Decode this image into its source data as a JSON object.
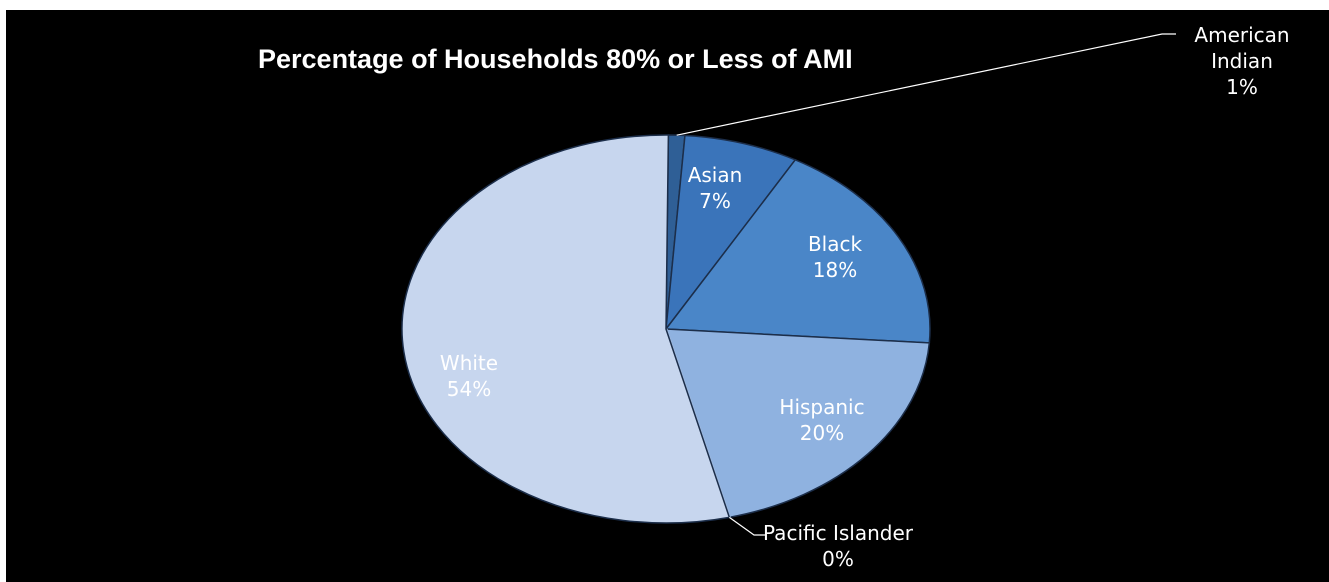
{
  "chart_data": {
    "type": "pie",
    "title": "Percentage of Households 80% or Less of AMI",
    "slices": [
      {
        "label": "American Indian",
        "label_lines": [
          "American",
          "Indian"
        ],
        "value": 1,
        "value_label": "1%",
        "color": "#2f5f96"
      },
      {
        "label": "Asian",
        "label_lines": [
          "Asian"
        ],
        "value": 7,
        "value_label": "7%",
        "color": "#3a74ba"
      },
      {
        "label": "Black",
        "label_lines": [
          "Black"
        ],
        "value": 18,
        "value_label": "18%",
        "color": "#4a86c8"
      },
      {
        "label": "Hispanic",
        "label_lines": [
          "Hispanic"
        ],
        "value": 20,
        "value_label": "20%",
        "color": "#8fb2e0"
      },
      {
        "label": "Pacific Islander",
        "label_lines": [
          "Pacific Islander"
        ],
        "value": 0,
        "value_label": "0%",
        "color": "#9db8dd"
      },
      {
        "label": "White",
        "label_lines": [
          "White"
        ],
        "value": 54,
        "value_label": "54%",
        "color": "#c7d6ee"
      }
    ],
    "legend": "none",
    "background": "#000000"
  }
}
